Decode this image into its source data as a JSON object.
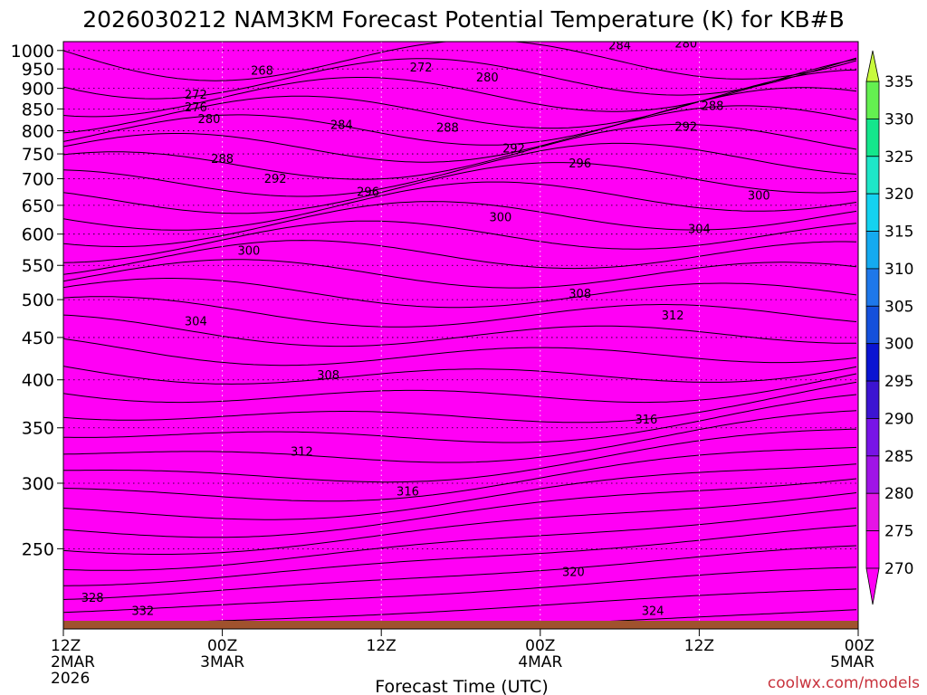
{
  "chart_data": {
    "type": "contour",
    "title": "2026030212 NAM3KM Forecast Potential Temperature (K) for KB#B",
    "xlabel": "Forecast Time (UTC)",
    "ylabel": "",
    "credit": "coolwx.com/models",
    "x_hours_range": [
      0,
      60
    ],
    "y_pressure_range": [
      1025,
      200
    ],
    "x_ticks": [
      {
        "hour": 0,
        "lines": [
          "12Z",
          "2MAR",
          "2026"
        ]
      },
      {
        "hour": 12,
        "lines": [
          "00Z",
          "3MAR"
        ]
      },
      {
        "hour": 24,
        "lines": [
          "12Z"
        ]
      },
      {
        "hour": 36,
        "lines": [
          "00Z",
          "4MAR"
        ]
      },
      {
        "hour": 48,
        "lines": [
          "12Z"
        ]
      },
      {
        "hour": 60,
        "lines": [
          "00Z",
          "5MAR"
        ]
      }
    ],
    "y_ticks": [
      250,
      300,
      350,
      400,
      450,
      500,
      550,
      600,
      650,
      700,
      750,
      800,
      850,
      900,
      950,
      1000
    ],
    "colorbar_ticks": [
      335,
      330,
      325,
      320,
      315,
      310,
      305,
      300,
      295,
      290,
      285,
      280,
      275,
      270
    ],
    "colorbar_colors": [
      "#c8fa3c",
      "#64f050",
      "#14e68c",
      "#1ee6c8",
      "#14d2f0",
      "#14aaf0",
      "#1e78ea",
      "#1450dc",
      "#0a14d2",
      "#3c14d2",
      "#7814e6",
      "#a014e6",
      "#e614e6",
      "#ff00f5"
    ],
    "contour_labels": [
      {
        "text": "332",
        "h": 6.0,
        "p": 210
      },
      {
        "text": "328",
        "h": 2.2,
        "p": 218
      },
      {
        "text": "324",
        "h": 44.5,
        "p": 210
      },
      {
        "text": "320",
        "h": 38.5,
        "p": 234
      },
      {
        "text": "316",
        "h": 26.0,
        "p": 293
      },
      {
        "text": "316",
        "h": 44.0,
        "p": 358
      },
      {
        "text": "312",
        "h": 18.0,
        "p": 327
      },
      {
        "text": "312",
        "h": 46.0,
        "p": 478
      },
      {
        "text": "308",
        "h": 20.0,
        "p": 405
      },
      {
        "text": "308",
        "h": 39.0,
        "p": 508
      },
      {
        "text": "304",
        "h": 10.0,
        "p": 470
      },
      {
        "text": "304",
        "h": 48.0,
        "p": 608
      },
      {
        "text": "300",
        "h": 14.0,
        "p": 572
      },
      {
        "text": "300",
        "h": 33.0,
        "p": 628
      },
      {
        "text": "300",
        "h": 52.5,
        "p": 667
      },
      {
        "text": "296",
        "h": 23.0,
        "p": 674
      },
      {
        "text": "296",
        "h": 39.0,
        "p": 730
      },
      {
        "text": "292",
        "h": 16.0,
        "p": 699
      },
      {
        "text": "292",
        "h": 34.0,
        "p": 761
      },
      {
        "text": "292",
        "h": 47.0,
        "p": 808
      },
      {
        "text": "288",
        "h": 12.0,
        "p": 739
      },
      {
        "text": "288",
        "h": 29.0,
        "p": 806
      },
      {
        "text": "288",
        "h": 49.0,
        "p": 856
      },
      {
        "text": "284",
        "h": 21.0,
        "p": 812
      },
      {
        "text": "284",
        "h": 42.0,
        "p": 1013
      },
      {
        "text": "280",
        "h": 11.0,
        "p": 825
      },
      {
        "text": "280",
        "h": 32.0,
        "p": 927
      },
      {
        "text": "280",
        "h": 47.0,
        "p": 1019
      },
      {
        "text": "276",
        "h": 10.0,
        "p": 853
      },
      {
        "text": "272",
        "h": 10.0,
        "p": 884
      },
      {
        "text": "272",
        "h": 27.0,
        "p": 953
      },
      {
        "text": "268",
        "h": 15.0,
        "p": 945
      }
    ]
  }
}
